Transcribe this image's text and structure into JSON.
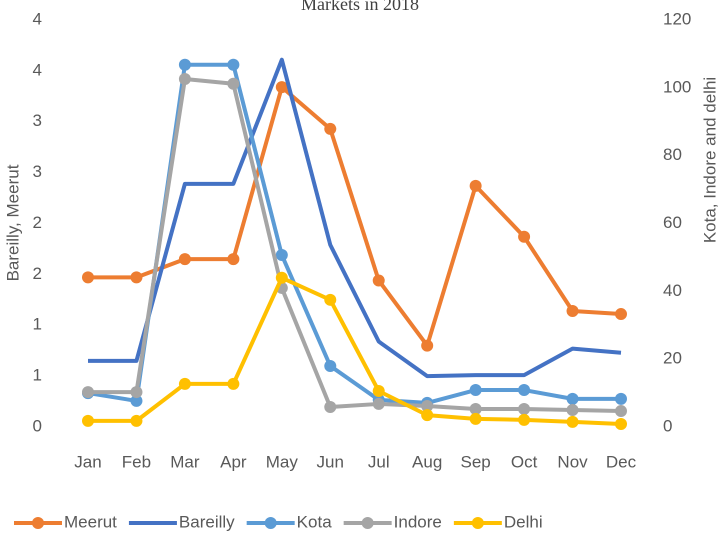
{
  "chart_data": {
    "type": "line",
    "title": "Markets in 2018",
    "categories": [
      "Jan",
      "Feb",
      "Mar",
      "Apr",
      "May",
      "Jun",
      "Jul",
      "Aug",
      "Sep",
      "Oct",
      "Nov",
      "Dec"
    ],
    "ylabel": "Bareilly, Meerut",
    "y2label": "Kota, Indore and delhi",
    "ylim": [
      0,
      4
    ],
    "yticks": [
      0,
      {
        "value": 0.5,
        "label": "1"
      },
      1,
      {
        "value": 1.5,
        "label": "2"
      },
      2,
      {
        "value": 2.5,
        "label": "3"
      },
      3,
      {
        "value": 3.5,
        "label": "4"
      },
      4
    ],
    "y2lim": [
      0,
      120
    ],
    "y2ticks": [
      0,
      20,
      40,
      60,
      80,
      100,
      120
    ],
    "legend": "bottom",
    "series": [
      {
        "name": "Meerut",
        "color": "#ed7d31",
        "markers": true,
        "values": [
          1.47,
          1.47,
          1.65,
          1.65,
          3.34,
          2.93,
          1.44,
          0.8,
          2.37,
          1.87,
          1.14,
          1.11
        ]
      },
      {
        "name": "Bareilly",
        "color": "#4472c4",
        "markers": false,
        "values": [
          0.65,
          0.65,
          2.39,
          2.39,
          3.61,
          1.79,
          0.84,
          0.5,
          0.51,
          0.51,
          0.77,
          0.73
        ]
      },
      {
        "name": "Kota",
        "color": "#5b9bd5",
        "markers": true,
        "axis": "y2",
        "values": [
          10.0,
          7.7,
          106.8,
          106.8,
          50.7,
          18.0,
          8.0,
          7.1,
          10.9,
          10.9,
          8.3,
          8.3
        ]
      },
      {
        "name": "Indore",
        "color": "#a5a5a5",
        "markers": true,
        "axis": "y2",
        "values": [
          10.3,
          10.3,
          102.6,
          101.2,
          41.0,
          5.9,
          6.8,
          6.2,
          5.3,
          5.3,
          5.0,
          4.7
        ]
      },
      {
        "name": "Delhi",
        "color": "#ffc000",
        "markers": true,
        "axis": "y2",
        "values": [
          1.8,
          1.8,
          12.7,
          12.7,
          44.0,
          37.5,
          10.6,
          3.5,
          2.4,
          2.1,
          1.5,
          0.9
        ]
      }
    ]
  }
}
